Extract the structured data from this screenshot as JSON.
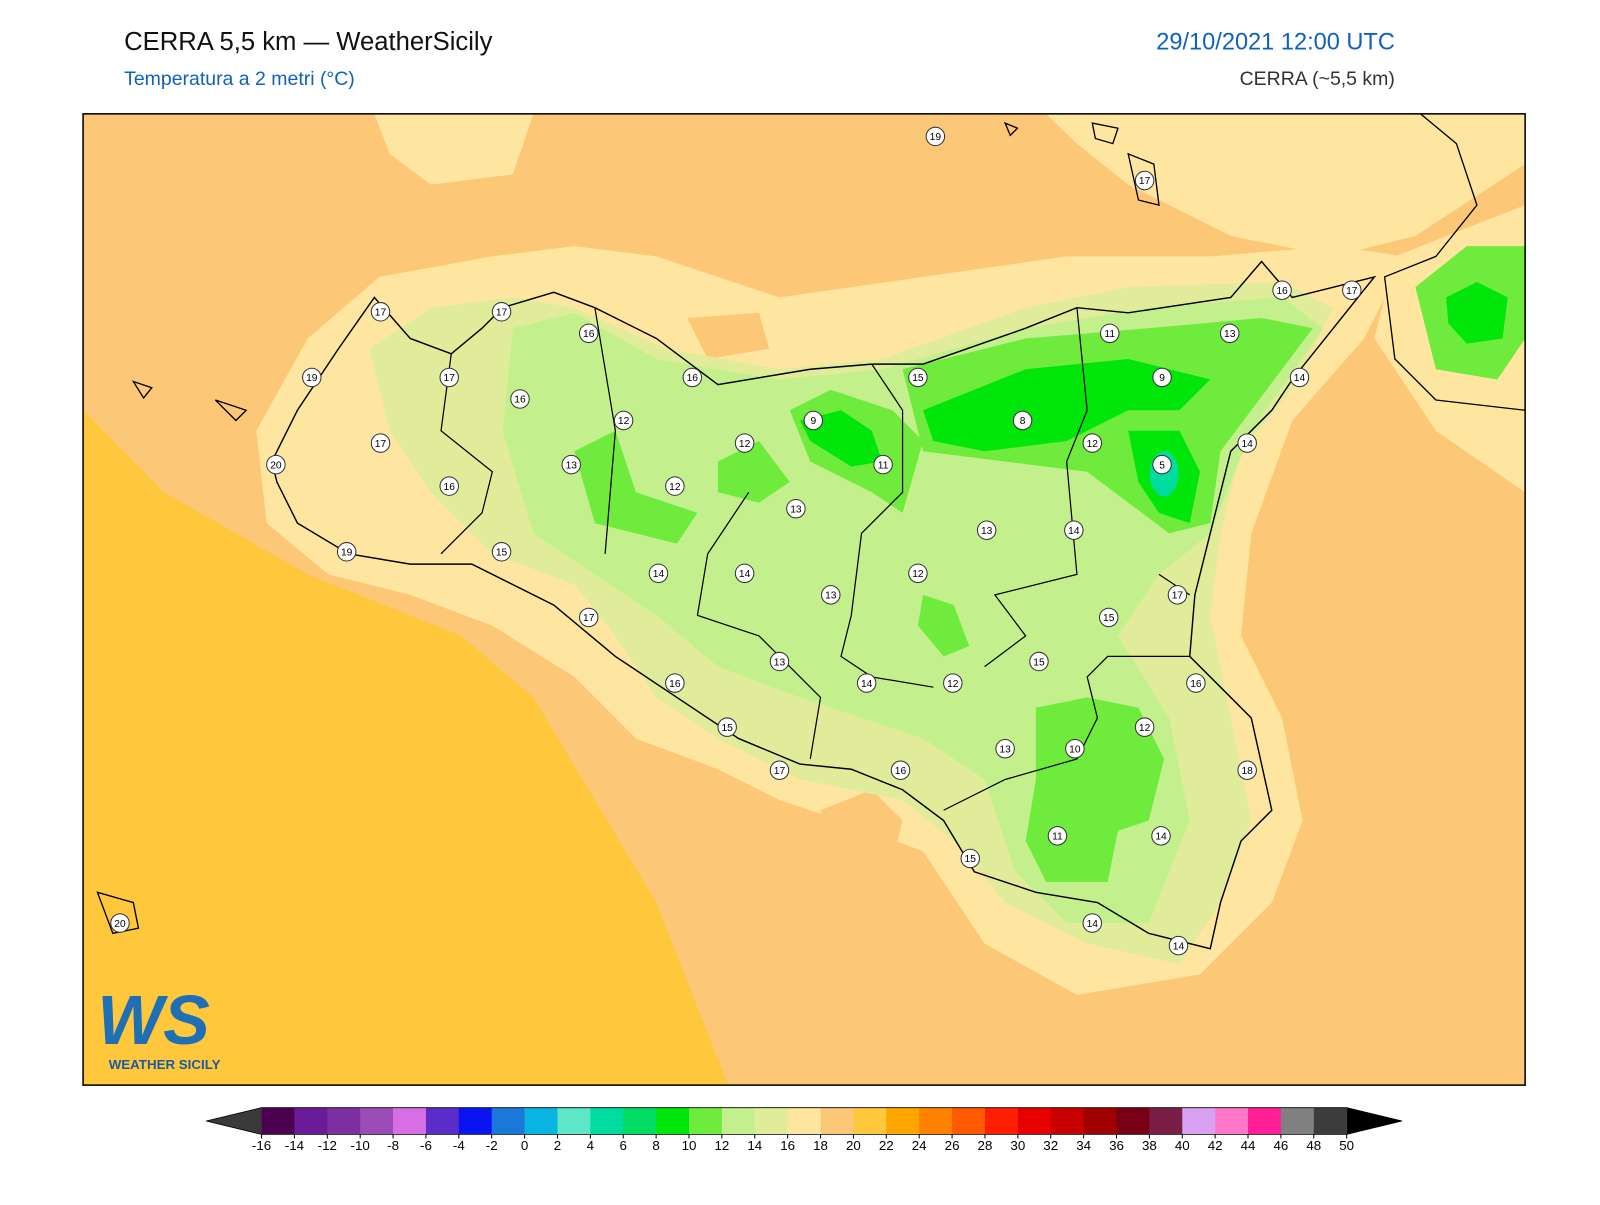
{
  "header": {
    "title": "CERRA 5,5 km — WeatherSicily",
    "subtitle": "Temperatura a 2 metri (°C)",
    "datetime": "29/10/2021 12:00 UTC",
    "model": "CERRA (~5,5 km)"
  },
  "stations": [
    19,
    17,
    17,
    17,
    16,
    16,
    17,
    11,
    13,
    19,
    17,
    16,
    15,
    9,
    14,
    16,
    12,
    9,
    8,
    17,
    12,
    12,
    14,
    20,
    13,
    11,
    5,
    16,
    12,
    13,
    13,
    14,
    19,
    15,
    14,
    14,
    12,
    13,
    17,
    17,
    15,
    15,
    13,
    16,
    14,
    12,
    16,
    15,
    12,
    13,
    10,
    17,
    16,
    18,
    11,
    14,
    15,
    20,
    14,
    14
  ],
  "colorbar": {
    "ticks": [
      -16,
      -14,
      -12,
      -10,
      -8,
      -6,
      -4,
      -2,
      0,
      2,
      4,
      6,
      8,
      10,
      12,
      14,
      16,
      18,
      20,
      22,
      24,
      26,
      28,
      30,
      32,
      34,
      36,
      38,
      40,
      42,
      44,
      46,
      48,
      50
    ],
    "colors": [
      "#4b0050",
      "#6a1b9a",
      "#7b2fa0",
      "#9b4cb6",
      "#d86ee6",
      "#5b2dc8",
      "#0a14f0",
      "#1a78d8",
      "#0ab4e0",
      "#5ee6c8",
      "#00dca0",
      "#00dc64",
      "#00e60a",
      "#6eeb3c",
      "#c3f08c",
      "#e1ec9a",
      "#ffe6a0",
      "#fcc878",
      "#ffc83c",
      "#ffa500",
      "#ff8200",
      "#ff5a00",
      "#ff1e00",
      "#e60000",
      "#c80000",
      "#a00000",
      "#780014",
      "#7a1e46",
      "#d8a0f0",
      "#ff78c8",
      "#ff1e96",
      "#808080",
      "#3c3c3c"
    ],
    "under": "#3a3a3a",
    "over": "#000000"
  },
  "logo": {
    "letters": "WS",
    "text": "WEATHER SICILY"
  }
}
